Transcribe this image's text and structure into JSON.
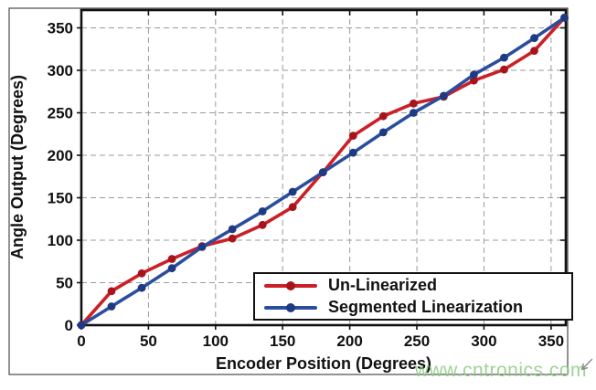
{
  "watermark": {
    "text": "www.cntronics.com",
    "color": "#8fcb84"
  },
  "chart_data": {
    "type": "line",
    "title": "",
    "xlabel": "Encoder Position (Degrees)",
    "ylabel": "Angle Output (Degrees)",
    "x": [
      0,
      22.5,
      45,
      67.5,
      90,
      112.5,
      135,
      157.5,
      180,
      202.5,
      225,
      247.5,
      270,
      292.5,
      315,
      337.5,
      360
    ],
    "series": [
      {
        "name": "Un-Linearized",
        "color": "#cb2027",
        "marker_color": "#a8141b",
        "values": [
          0,
          40,
          61,
          78,
          93,
          102,
          118,
          139,
          180,
          223,
          246,
          261,
          269,
          288,
          301,
          323,
          362
        ]
      },
      {
        "name": "Segmented Linearization",
        "color": "#2b4d9e",
        "marker_color": "#1d3a82",
        "values": [
          0,
          22,
          44,
          67,
          92,
          113,
          134,
          157,
          180,
          203,
          227,
          250,
          270,
          295,
          315,
          338,
          362
        ]
      }
    ],
    "xlim": [
      0,
      361
    ],
    "ylim": [
      0,
      371
    ],
    "xticks": [
      0,
      50,
      100,
      150,
      200,
      250,
      300,
      350
    ],
    "yticks": [
      0,
      50,
      100,
      150,
      200,
      250,
      300,
      350
    ],
    "grid": true,
    "legend_position": "bottom-right",
    "frame_color": "#111111",
    "grid_color": "#9b9b9b"
  }
}
